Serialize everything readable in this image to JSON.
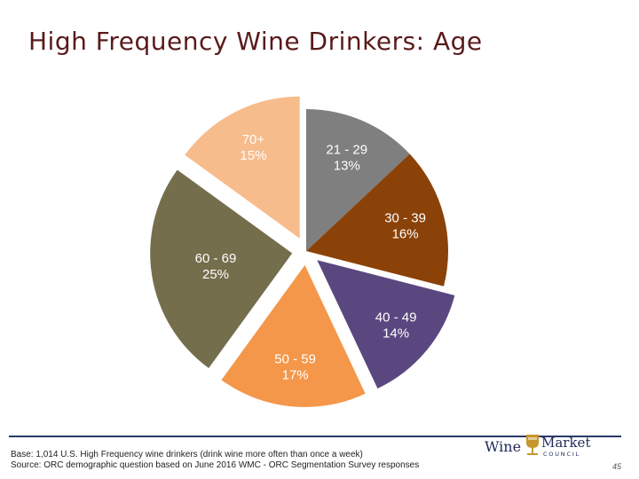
{
  "title": "High Frequency Wine Drinkers: Age",
  "chart_data": {
    "type": "pie",
    "slices": [
      {
        "category": "21 - 29",
        "value": 13,
        "label": "13%",
        "color": "#7f7f7f",
        "exploded": false
      },
      {
        "category": "30 - 39",
        "value": 16,
        "label": "16%",
        "color": "#8b4208",
        "exploded": false
      },
      {
        "category": "40 - 49",
        "value": 14,
        "label": "14%",
        "color": "#5b4780",
        "exploded": true
      },
      {
        "category": "50 - 59",
        "value": 17,
        "label": "17%",
        "color": "#f4974a",
        "exploded": true
      },
      {
        "category": "60 - 69",
        "value": 25,
        "label": "25%",
        "color": "#746e4c",
        "exploded": true
      },
      {
        "category": "70+",
        "value": 15,
        "label": "15%",
        "color": "#f7bc8c",
        "exploded": true
      }
    ]
  },
  "footnote": {
    "line1": "Base: 1,014 U.S. High Frequency wine drinkers (drink wine more often than once a week)",
    "line2": "Source: ORC demographic question based on June 2016 WMC - ORC Segmentation Survey responses"
  },
  "logo": {
    "wine": "Wine",
    "market": "Market",
    "council": "COUNCIL"
  },
  "page_number": "45",
  "colors": {
    "title": "#5a1a1a",
    "footer_rule": "#2a3a6a",
    "logo_navy": "#1e2a5a",
    "logo_gold": "#c8962e"
  }
}
